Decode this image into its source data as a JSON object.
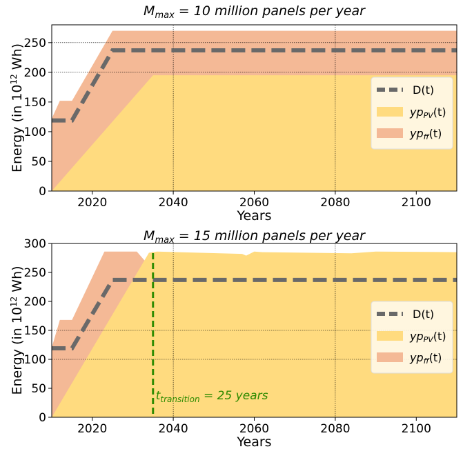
{
  "chart_data": [
    {
      "type": "area",
      "title": "M_max = 10 million panels per year",
      "title_parts": {
        "var": "M",
        "sub": "max",
        "rest": " = 10 million panels per year"
      },
      "xlabel": "Years",
      "ylabel": "Energy (in 10¹² Wh)",
      "ylabel_parts": {
        "pre": "Energy (in 10",
        "sup": "12",
        "post": " Wh)"
      },
      "xlim": [
        2010,
        2110
      ],
      "ylim": [
        0,
        280
      ],
      "xticks": [
        "2020",
        "2040",
        "2060",
        "2080",
        "2100"
      ],
      "yticks": [
        "0",
        "50",
        "100",
        "150",
        "200",
        "250"
      ],
      "grid": "dotted lines at x=2040, 2080 and y=200, 250",
      "legend_position": "center-right",
      "series": [
        {
          "name": "D(t)",
          "style": "dashed",
          "color": "#696969",
          "x": [
            2010,
            2015,
            2025,
            2110
          ],
          "y": [
            119,
            119,
            237,
            237
          ]
        },
        {
          "name": "yp_PV(t)",
          "label_parts": {
            "base": "yp",
            "sub": "PV",
            "tail": "(t)"
          },
          "color": "#ffdb7f",
          "x": [
            2010,
            2035,
            2110
          ],
          "y": [
            0,
            195,
            195
          ]
        },
        {
          "name": "yp_ff(t)",
          "label_parts": {
            "base": "yp",
            "sub": "ff",
            "tail": "(t)"
          },
          "color": "#f4b996",
          "x": [
            2010,
            2010.2,
            2012,
            2015,
            2025,
            2110
          ],
          "y": [
            120,
            125,
            152,
            152,
            270,
            270
          ]
        }
      ]
    },
    {
      "type": "area",
      "title": "M_max = 15 million panels per year",
      "title_parts": {
        "var": "M",
        "sub": "max",
        "rest": " = 15 million panels per year"
      },
      "xlabel": "Years",
      "ylabel": "Energy (in 10¹² Wh)",
      "ylabel_parts": {
        "pre": "Energy (in 10",
        "sup": "12",
        "post": " Wh)"
      },
      "xlim": [
        2010,
        2110
      ],
      "ylim": [
        0,
        300
      ],
      "xticks": [
        "2020",
        "2040",
        "2060",
        "2080",
        "2100"
      ],
      "yticks": [
        "0",
        "50",
        "100",
        "150",
        "200",
        "250",
        "300"
      ],
      "grid": "dotted lines at x=2040, 2080 and y=100, 150",
      "legend_position": "center-right",
      "series": [
        {
          "name": "D(t)",
          "style": "dashed",
          "color": "#696969",
          "x": [
            2010,
            2015,
            2025,
            2110
          ],
          "y": [
            119,
            119,
            237,
            237
          ]
        },
        {
          "name": "yp_PV(t)",
          "label_parts": {
            "base": "yp",
            "sub": "PV",
            "tail": "(t)"
          },
          "color": "#ffdb7f",
          "x": [
            2010,
            2034,
            2036,
            2057,
            2058,
            2060,
            2062,
            2084,
            2090,
            2110
          ],
          "y": [
            0,
            284,
            286,
            282,
            279,
            286,
            285,
            283,
            286,
            285
          ]
        },
        {
          "name": "yp_ff(t)",
          "label_parts": {
            "base": "yp",
            "sub": "ff",
            "tail": "(t)"
          },
          "color": "#f4b996",
          "x": [
            2010,
            2010.2,
            2012,
            2015,
            2023,
            2031,
            2033,
            2035
          ],
          "y": [
            120,
            125,
            168,
            168,
            286,
            286,
            270,
            286
          ]
        }
      ],
      "annotation": {
        "text": "t_transition = 25 years",
        "parts": {
          "var": "t",
          "sub": "transition",
          "rest": " = 25 years"
        },
        "x": 2035,
        "color": "#2e8b00"
      }
    }
  ]
}
